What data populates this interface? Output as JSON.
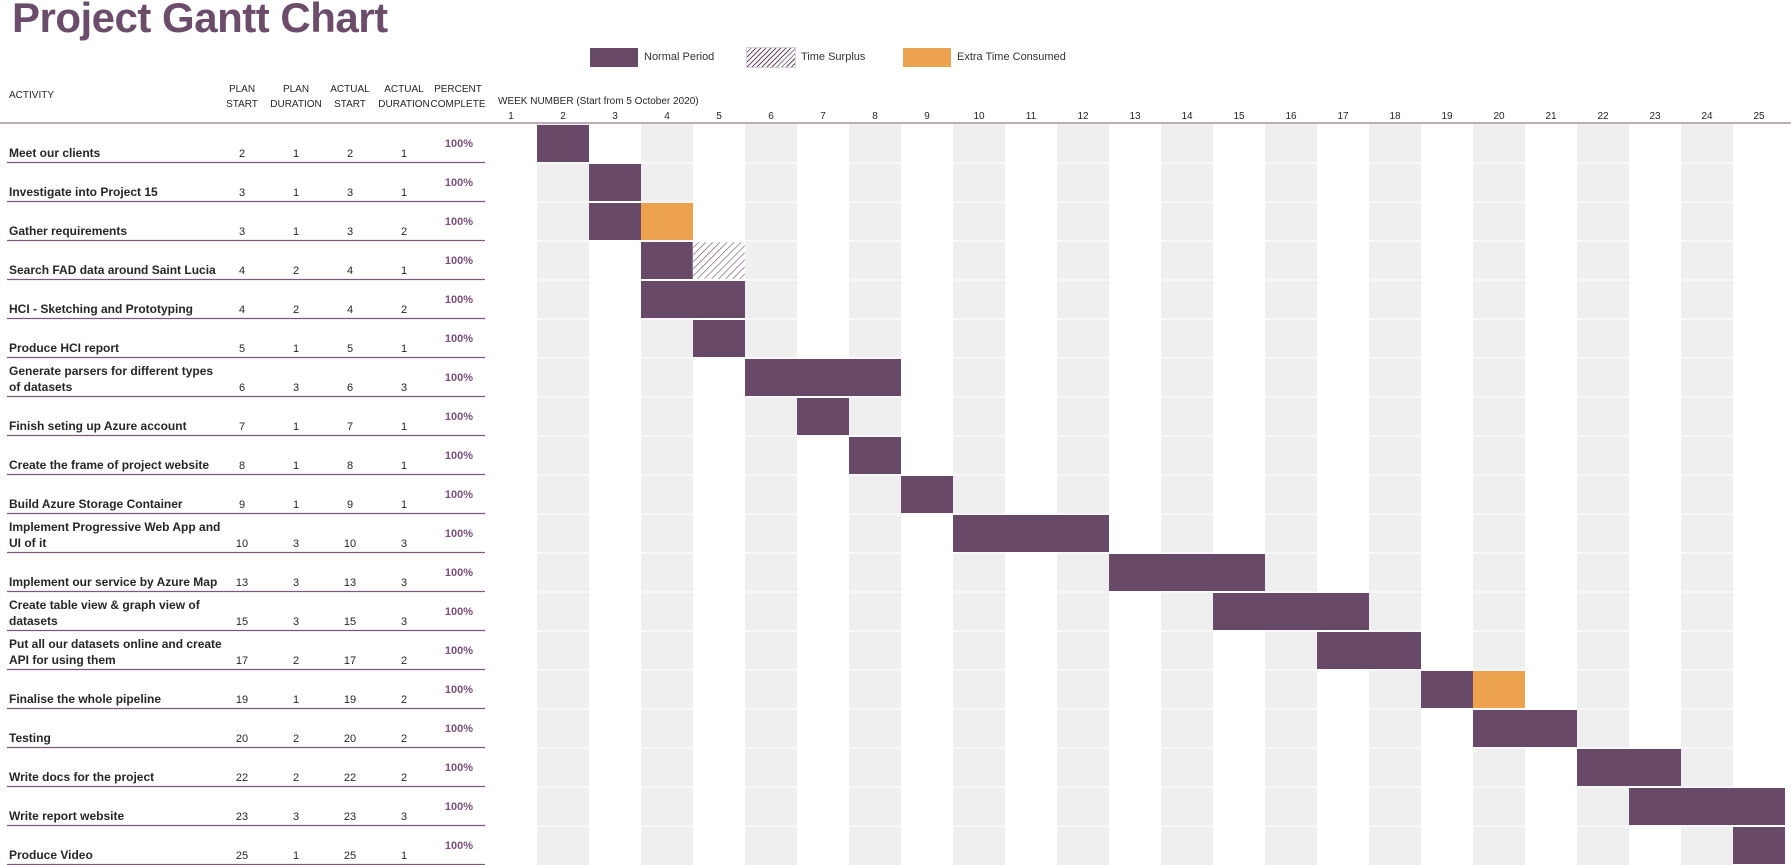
{
  "title": "Project Gantt Chart",
  "legend": [
    {
      "key": "normal",
      "label": "Normal Period"
    },
    {
      "key": "surplus",
      "label": "Time Surplus"
    },
    {
      "key": "extra",
      "label": "Extra Time Consumed"
    }
  ],
  "colors": {
    "title": "#6b4d6b",
    "normal": "#684a68",
    "extra": "#eda24f",
    "surplus_hatch": "#684a68",
    "percent": "#7a4f7a",
    "row_rule": "#7a5a7a",
    "band": "#efefef"
  },
  "columns": {
    "activity": "ACTIVITY",
    "plan_start": [
      "PLAN",
      "START"
    ],
    "plan_duration": [
      "PLAN",
      "DURATION"
    ],
    "actual_start": [
      "ACTUAL",
      "START"
    ],
    "actual_duration": [
      "ACTUAL",
      "DURATION"
    ],
    "percent_complete": [
      "PERCENT",
      "COMPLETE"
    ],
    "week_header": "WEEK NUMBER (Start from 5 October 2020)"
  },
  "chart_data": {
    "type": "gantt",
    "title": "Project Gantt Chart",
    "x_range": [
      1,
      25
    ],
    "week_numbers": [
      1,
      2,
      3,
      4,
      5,
      6,
      7,
      8,
      9,
      10,
      11,
      12,
      13,
      14,
      15,
      16,
      17,
      18,
      19,
      20,
      21,
      22,
      23,
      24,
      25
    ],
    "tasks": [
      {
        "activity": [
          "Meet our clients"
        ],
        "plan_start": 2,
        "plan_duration": 1,
        "actual_start": 2,
        "actual_duration": 1,
        "percent": "100%"
      },
      {
        "activity": [
          "Investigate into Project 15"
        ],
        "plan_start": 3,
        "plan_duration": 1,
        "actual_start": 3,
        "actual_duration": 1,
        "percent": "100%"
      },
      {
        "activity": [
          "Gather requirements"
        ],
        "plan_start": 3,
        "plan_duration": 1,
        "actual_start": 3,
        "actual_duration": 2,
        "percent": "100%"
      },
      {
        "activity": [
          "Search FAD data around Saint Lucia"
        ],
        "plan_start": 4,
        "plan_duration": 2,
        "actual_start": 4,
        "actual_duration": 1,
        "percent": "100%"
      },
      {
        "activity": [
          "HCI - Sketching and Prototyping"
        ],
        "plan_start": 4,
        "plan_duration": 2,
        "actual_start": 4,
        "actual_duration": 2,
        "percent": "100%"
      },
      {
        "activity": [
          "Produce HCI report"
        ],
        "plan_start": 5,
        "plan_duration": 1,
        "actual_start": 5,
        "actual_duration": 1,
        "percent": "100%"
      },
      {
        "activity": [
          "Generate parsers for different types",
          "of datasets"
        ],
        "plan_start": 6,
        "plan_duration": 3,
        "actual_start": 6,
        "actual_duration": 3,
        "percent": "100%"
      },
      {
        "activity": [
          "Finish seting up Azure account"
        ],
        "plan_start": 7,
        "plan_duration": 1,
        "actual_start": 7,
        "actual_duration": 1,
        "percent": "100%"
      },
      {
        "activity": [
          "Create the frame of project website"
        ],
        "plan_start": 8,
        "plan_duration": 1,
        "actual_start": 8,
        "actual_duration": 1,
        "percent": "100%"
      },
      {
        "activity": [
          "Build Azure Storage Container"
        ],
        "plan_start": 9,
        "plan_duration": 1,
        "actual_start": 9,
        "actual_duration": 1,
        "percent": "100%"
      },
      {
        "activity": [
          "Implement Progressive Web App and",
          "UI of it"
        ],
        "plan_start": 10,
        "plan_duration": 3,
        "actual_start": 10,
        "actual_duration": 3,
        "percent": "100%"
      },
      {
        "activity": [
          "Implement our service by Azure Map"
        ],
        "plan_start": 13,
        "plan_duration": 3,
        "actual_start": 13,
        "actual_duration": 3,
        "percent": "100%"
      },
      {
        "activity": [
          "Create table view & graph view of",
          "datasets"
        ],
        "plan_start": 15,
        "plan_duration": 3,
        "actual_start": 15,
        "actual_duration": 3,
        "percent": "100%"
      },
      {
        "activity": [
          "Put all our datasets online and create",
          "API for using them"
        ],
        "plan_start": 17,
        "plan_duration": 2,
        "actual_start": 17,
        "actual_duration": 2,
        "percent": "100%"
      },
      {
        "activity": [
          "Finalise the whole pipeline"
        ],
        "plan_start": 19,
        "plan_duration": 1,
        "actual_start": 19,
        "actual_duration": 2,
        "percent": "100%"
      },
      {
        "activity": [
          "Testing"
        ],
        "plan_start": 20,
        "plan_duration": 2,
        "actual_start": 20,
        "actual_duration": 2,
        "percent": "100%"
      },
      {
        "activity": [
          "Write docs for the project"
        ],
        "plan_start": 22,
        "plan_duration": 2,
        "actual_start": 22,
        "actual_duration": 2,
        "percent": "100%"
      },
      {
        "activity": [
          "Write report website"
        ],
        "plan_start": 23,
        "plan_duration": 3,
        "actual_start": 23,
        "actual_duration": 3,
        "percent": "100%"
      },
      {
        "activity": [
          "Produce Video"
        ],
        "plan_start": 25,
        "plan_duration": 1,
        "actual_start": 25,
        "actual_duration": 1,
        "percent": "100%"
      }
    ]
  }
}
